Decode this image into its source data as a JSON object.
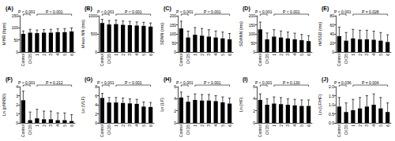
{
  "chart_data": [
    {
      "type": "bar",
      "title": "(A)",
      "y_label": "MHR (bpm)",
      "color": "#000000",
      "grid": false,
      "categories": [
        "Control",
        "CKD5",
        "1",
        "2",
        "3",
        "4",
        "5",
        "6"
      ],
      "values": [
        75,
        80,
        78,
        80,
        80,
        82,
        82,
        85
      ],
      "errors": [
        12,
        14,
        13,
        13,
        14,
        14,
        15,
        15
      ],
      "ylim": [
        0,
        150
      ],
      "yticks": [
        0,
        50,
        100,
        150
      ],
      "annotations": [
        {
          "text": "P < 0.001",
          "from": "Control",
          "to": "CKD5"
        },
        {
          "text": "P < 0.001",
          "from": "1",
          "to": "6"
        }
      ]
    },
    {
      "type": "bar",
      "title": "(B)",
      "y_label": "Mean NN (ms)",
      "color": "#000000",
      "grid": false,
      "categories": [
        "Control",
        "CKD5",
        "1",
        "2",
        "3",
        "4",
        "5",
        "6"
      ],
      "values": [
        800,
        760,
        770,
        750,
        740,
        730,
        720,
        700
      ],
      "errors": [
        100,
        110,
        110,
        105,
        105,
        100,
        100,
        100
      ],
      "ylim": [
        0,
        1000
      ],
      "yticks": [
        0,
        500,
        1000
      ],
      "annotations": [
        {
          "text": "P < 0.001",
          "from": "Control",
          "to": "CKD5"
        },
        {
          "text": "P < 0.001",
          "from": "1",
          "to": "6"
        }
      ]
    },
    {
      "type": "bar",
      "title": "(C)",
      "y_label": "SDNN (ms)",
      "color": "#000000",
      "grid": false,
      "categories": [
        "Control",
        "CKD5",
        "1",
        "2",
        "3",
        "4",
        "5",
        "6"
      ],
      "values": [
        130,
        80,
        95,
        90,
        85,
        80,
        75,
        70
      ],
      "errors": [
        40,
        35,
        40,
        40,
        38,
        36,
        35,
        32
      ],
      "ylim": [
        0,
        200
      ],
      "yticks": [
        0,
        50,
        100,
        150,
        200
      ],
      "annotations": [
        {
          "text": "P < 0.001",
          "from": "Control",
          "to": "CKD5"
        },
        {
          "text": "P < 0.001",
          "from": "1",
          "to": "6"
        }
      ]
    },
    {
      "type": "bar",
      "title": "(D)",
      "y_label": "SDANN (ms)",
      "color": "#000000",
      "grid": false,
      "categories": [
        "Control",
        "CKD5",
        "1",
        "2",
        "3",
        "4",
        "5",
        "6"
      ],
      "values": [
        125,
        70,
        85,
        80,
        75,
        70,
        65,
        60
      ],
      "errors": [
        40,
        35,
        38,
        36,
        35,
        34,
        32,
        30
      ],
      "ylim": [
        0,
        200
      ],
      "yticks": [
        0,
        50,
        100,
        150,
        200
      ],
      "annotations": [
        {
          "text": "P < 0.001",
          "from": "Control",
          "to": "CKD5"
        },
        {
          "text": "P < 0.001",
          "from": "1",
          "to": "6"
        }
      ]
    },
    {
      "type": "bar",
      "title": "(E)",
      "y_label": "rMSSD (ms)",
      "color": "#000000",
      "grid": false,
      "categories": [
        "Control",
        "CKD5",
        "1",
        "2",
        "3",
        "4",
        "5",
        "6"
      ],
      "values": [
        35,
        25,
        30,
        28,
        28,
        27,
        25,
        22
      ],
      "errors": [
        20,
        18,
        20,
        20,
        20,
        19,
        18,
        16
      ],
      "ylim": [
        0,
        80
      ],
      "yticks": [
        0,
        20,
        40,
        60,
        80
      ],
      "annotations": [
        {
          "text": "P < 0.001",
          "from": "Control",
          "to": "CKD5"
        },
        {
          "text": "P = 0.028",
          "from": "1",
          "to": "6"
        }
      ]
    },
    {
      "type": "bar",
      "title": "(F)",
      "y_label": "Ln (pNN50)",
      "color": "#000000",
      "grid": false,
      "categories": [
        "Control",
        "CKD5",
        "1",
        "2",
        "3",
        "4",
        "5",
        "6"
      ],
      "values": [
        2.5,
        0.3,
        0.5,
        0.4,
        0.4,
        0.3,
        0.3,
        0.2
      ],
      "errors": [
        1.0,
        0.9,
        1.0,
        0.9,
        0.9,
        0.8,
        0.8,
        0.7
      ],
      "ylim": [
        0,
        4
      ],
      "yticks": [
        0,
        1,
        2,
        3,
        4
      ],
      "annotations": [
        {
          "text": "P < 0.001",
          "from": "Control",
          "to": "CKD5"
        },
        {
          "text": "P = 0.212",
          "from": "1",
          "to": "6"
        }
      ]
    },
    {
      "type": "bar",
      "title": "(G)",
      "y_label": "Ln (VLF)",
      "color": "#000000",
      "grid": false,
      "categories": [
        "Control",
        "CKD5",
        "1",
        "2",
        "3",
        "4",
        "5",
        "6"
      ],
      "values": [
        5.5,
        4.5,
        4.5,
        4.4,
        4.3,
        4.2,
        3.6,
        3.5
      ],
      "errors": [
        1.0,
        1.1,
        1.1,
        1.1,
        1.0,
        1.0,
        1.0,
        1.0
      ],
      "ylim": [
        0,
        8
      ],
      "yticks": [
        0,
        2,
        4,
        6,
        8
      ],
      "annotations": [
        {
          "text": "P < 0.001",
          "from": "Control",
          "to": "CKD5"
        },
        {
          "text": "P < 0.001",
          "from": "1",
          "to": "6"
        }
      ]
    },
    {
      "type": "bar",
      "title": "(H)",
      "y_label": "Ln (LF)",
      "color": "#000000",
      "grid": false,
      "categories": [
        "Control",
        "CKD5",
        "1",
        "2",
        "3",
        "4",
        "5",
        "6"
      ],
      "values": [
        4.2,
        3.5,
        3.8,
        3.7,
        3.7,
        3.6,
        3.4,
        3.2
      ],
      "errors": [
        0.9,
        0.9,
        1.0,
        1.0,
        1.0,
        0.9,
        0.9,
        0.9
      ],
      "ylim": [
        0,
        6
      ],
      "yticks": [
        0,
        2,
        4,
        6
      ],
      "annotations": [
        {
          "text": "P < 0.001",
          "from": "Control",
          "to": "CKD5"
        },
        {
          "text": "P < 0.001",
          "from": "1",
          "to": "6"
        }
      ]
    },
    {
      "type": "bar",
      "title": "(I)",
      "y_label": "Ln (HF)",
      "color": "#000000",
      "grid": false,
      "categories": [
        "Control",
        "CKD5",
        "1",
        "2",
        "3",
        "4",
        "5",
        "6"
      ],
      "values": [
        3.8,
        3.0,
        3.2,
        3.1,
        3.0,
        2.9,
        2.8,
        2.8
      ],
      "errors": [
        1.0,
        1.0,
        1.1,
        1.1,
        1.0,
        1.0,
        1.0,
        1.0
      ],
      "ylim": [
        0,
        6
      ],
      "yticks": [
        0,
        2,
        4,
        6
      ],
      "annotations": [
        {
          "text": "P < 0.001",
          "from": "Control",
          "to": "CKD5"
        },
        {
          "text": "P = 0.130",
          "from": "1",
          "to": "6"
        }
      ]
    },
    {
      "type": "bar",
      "title": "(J)",
      "y_label": "Ln (LF/HF)",
      "color": "#000000",
      "grid": false,
      "categories": [
        "Control",
        "CKD5",
        "1",
        "2",
        "3",
        "4",
        "5",
        "6"
      ],
      "values": [
        0.9,
        0.6,
        0.7,
        0.8,
        0.9,
        1.0,
        0.8,
        0.6
      ],
      "errors": [
        0.5,
        0.5,
        0.6,
        0.6,
        0.6,
        0.6,
        0.6,
        0.5
      ],
      "ylim": [
        0,
        2
      ],
      "yticks": [
        {
          "value": 0,
          "label": "0.0"
        },
        {
          "value": 0.5,
          "label": "0.5"
        },
        {
          "value": 1,
          "label": "1.0"
        },
        {
          "value": 1.5,
          "label": "1.5"
        },
        {
          "value": 2,
          "label": "2.0"
        }
      ],
      "annotations": [
        {
          "text": "P = 0.036",
          "from": "Control",
          "to": "CKD5"
        },
        {
          "text": "P = 0.004",
          "from": "1",
          "to": "6"
        }
      ]
    }
  ]
}
